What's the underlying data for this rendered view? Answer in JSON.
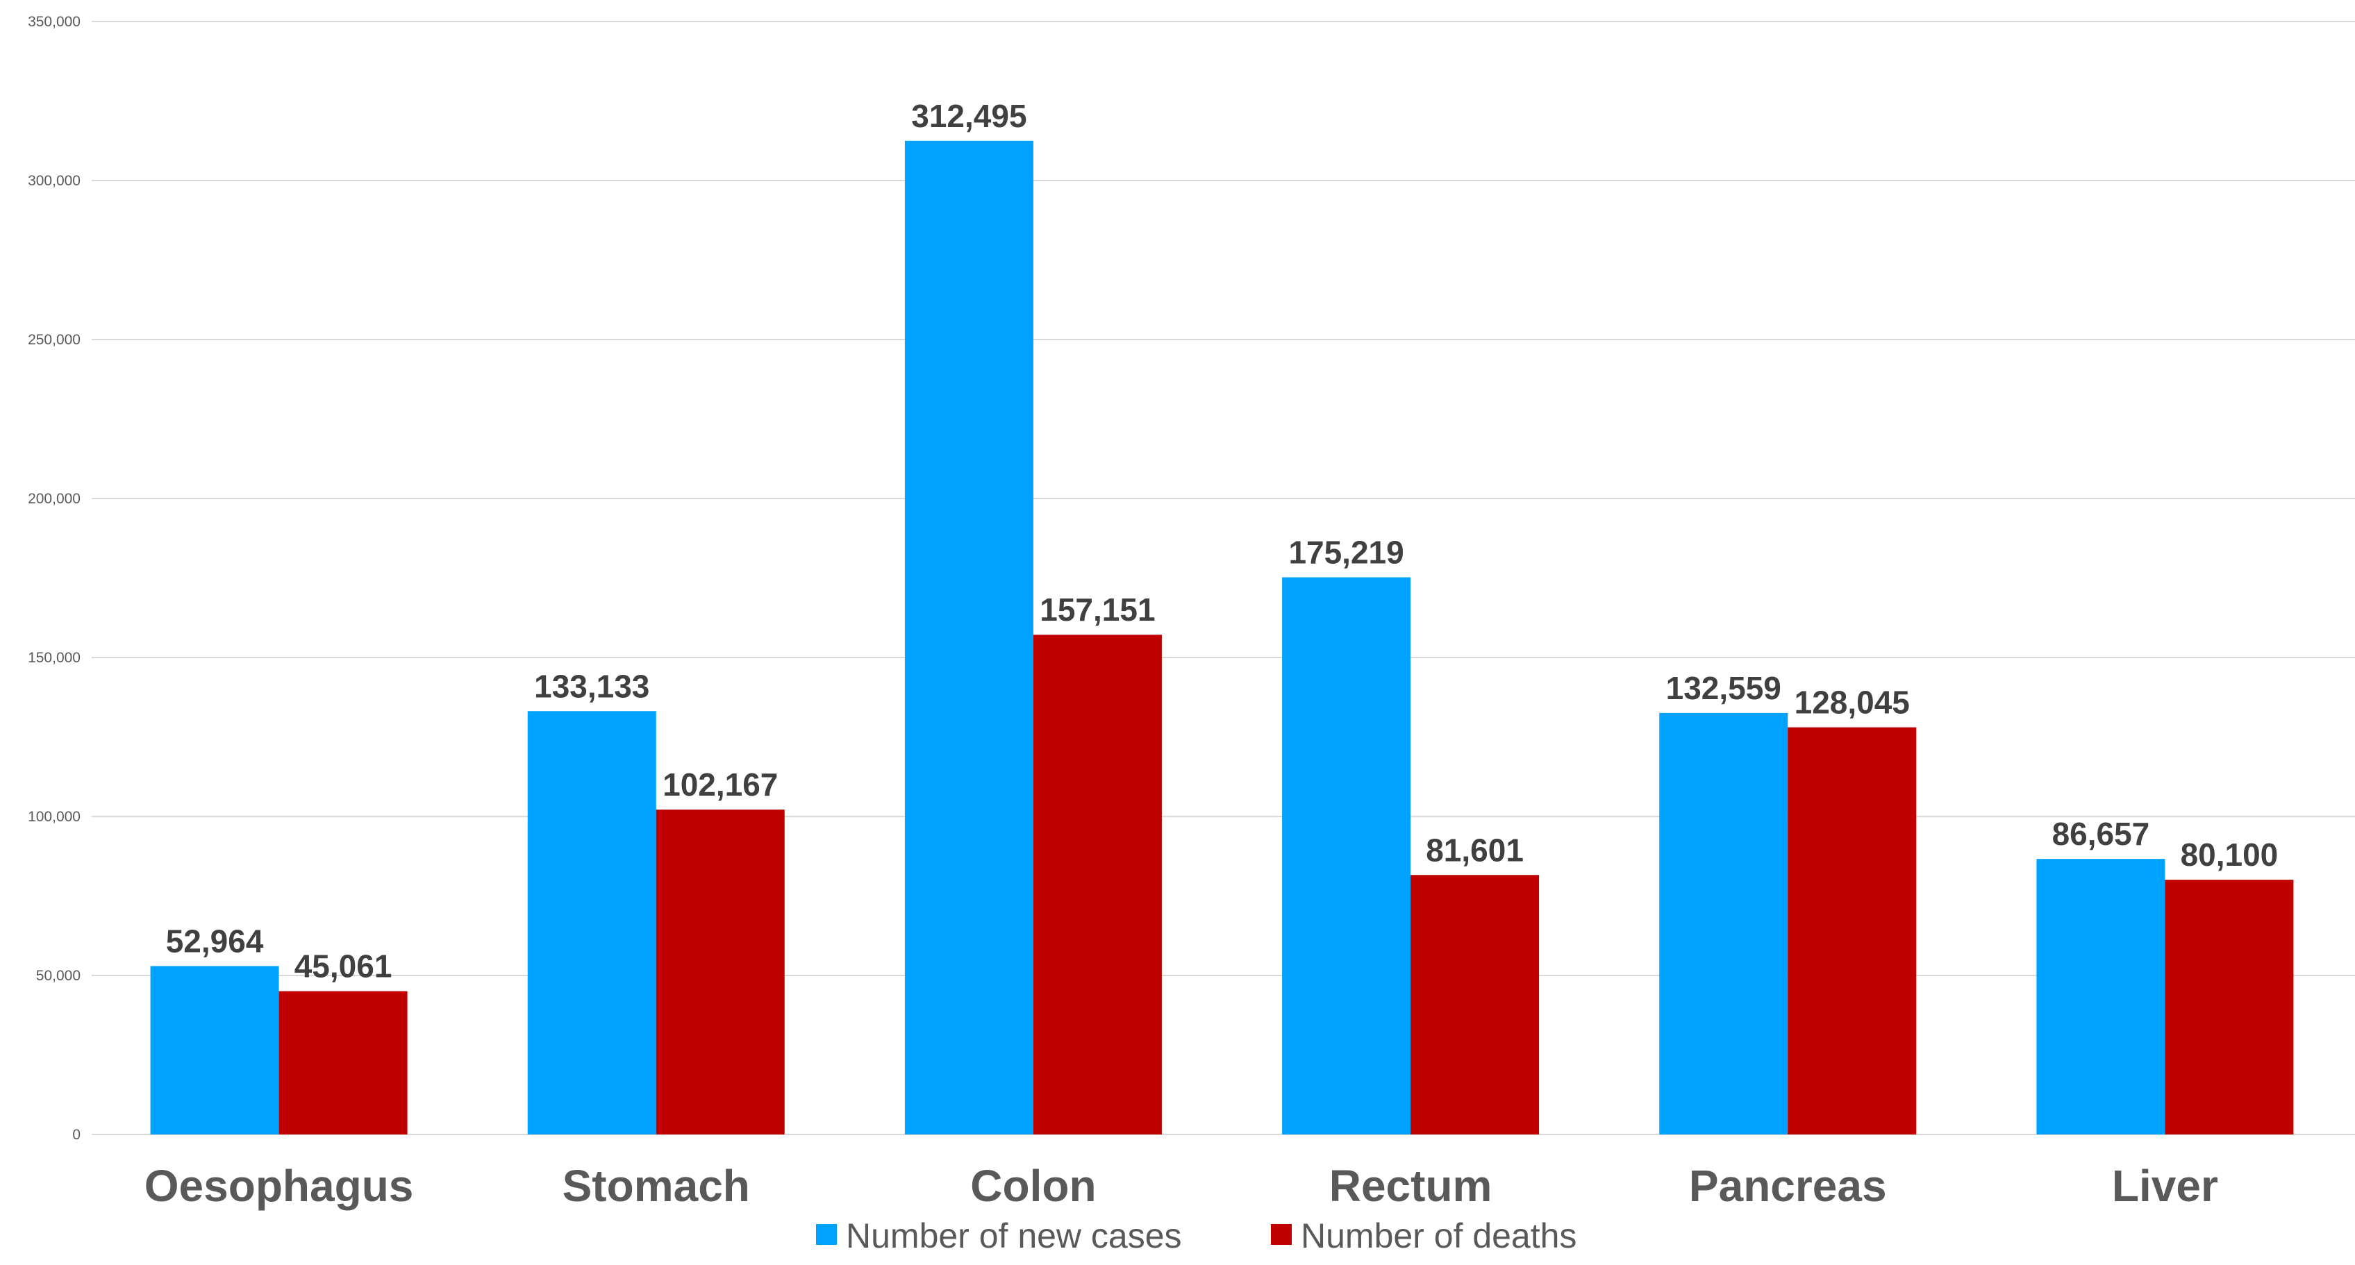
{
  "chart_data": {
    "type": "bar",
    "categories": [
      "Oesophagus",
      "Stomach",
      "Colon",
      "Rectum",
      "Pancreas",
      "Liver"
    ],
    "series": [
      {
        "name": "Number of new cases",
        "color": "#00a2ff",
        "values": [
          52964,
          133133,
          312495,
          175219,
          132559,
          86657
        ],
        "labels": [
          "52,964",
          "133,133",
          "312,495",
          "175,219",
          "132,559",
          "86,657"
        ]
      },
      {
        "name": "Number of deaths",
        "color": "#c00000",
        "values": [
          45061,
          102167,
          157151,
          81601,
          128045,
          80100
        ],
        "labels": [
          "45,061",
          "102,167",
          "157,151",
          "81,601",
          "128,045",
          "80,100"
        ]
      }
    ],
    "yticks": [
      0,
      50000,
      100000,
      150000,
      200000,
      250000,
      300000,
      350000
    ],
    "ytick_labels": [
      "0",
      "50,000",
      "100,000",
      "150,000",
      "200,000",
      "250,000",
      "300,000",
      "350,000"
    ],
    "ylim": [
      0,
      350000
    ],
    "grid": true,
    "legend_position": "bottom"
  }
}
